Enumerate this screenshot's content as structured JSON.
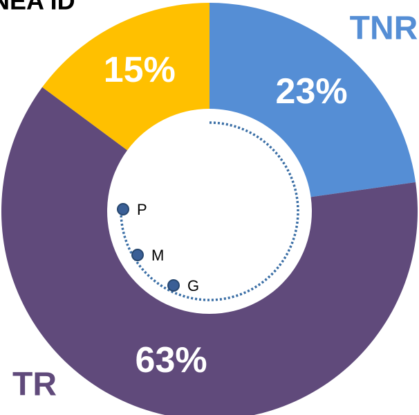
{
  "chart_data": {
    "type": "pie",
    "title": "NEA ID",
    "categories": [
      "TNR",
      "TR",
      null
    ],
    "values": [
      23,
      63,
      15
    ],
    "value_labels": [
      "23%",
      "63%",
      "15%"
    ],
    "colors": [
      "#558ed5",
      "#604a7b",
      "#ffc000"
    ],
    "annotations": [
      "P",
      "M",
      "G"
    ]
  }
}
